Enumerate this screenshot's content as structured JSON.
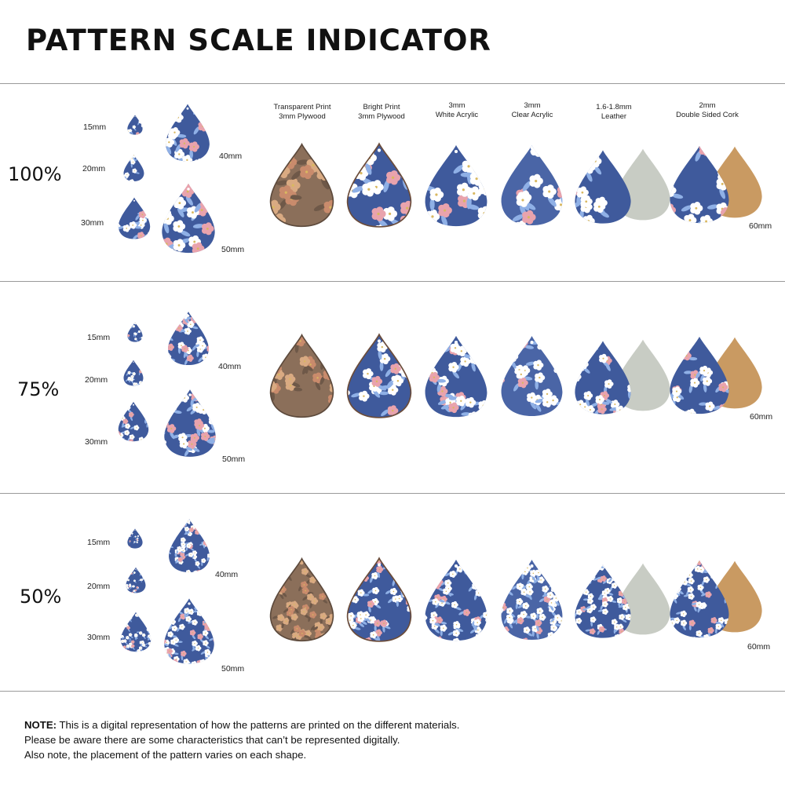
{
  "title": "PATTERN SCALE INDICATOR",
  "colors": {
    "navy": "#3f5a9c",
    "navy_dark": "#2f467f",
    "plywood": "#8b6f5a",
    "plywood_flower": "#d9aa82",
    "leather_back": "#c8ccc4",
    "cork": "#c99a62",
    "flower_white": "#ffffff",
    "flower_pink": "#e9a3ad",
    "leaf": "#8fb0e6"
  },
  "materials": [
    {
      "line1": "Transparent Print",
      "line2": "3mm Plywood"
    },
    {
      "line1": "Bright Print",
      "line2": "3mm Plywood"
    },
    {
      "line1": "3mm",
      "line2": "White Acrylic"
    },
    {
      "line1": "3mm",
      "line2": "Clear Acrylic"
    },
    {
      "line1": "1.6-1.8mm",
      "line2": "Leather"
    },
    {
      "line1": "2mm",
      "line2": "Double Sided Cork"
    }
  ],
  "sections": [
    {
      "scale": "100%",
      "sizes": [
        "15mm",
        "20mm",
        "30mm",
        "40mm",
        "50mm"
      ],
      "large_size": "60mm"
    },
    {
      "scale": "75%",
      "sizes": [
        "15mm",
        "20mm",
        "30mm",
        "40mm",
        "50mm"
      ],
      "large_size": "60mm"
    },
    {
      "scale": "50%",
      "sizes": [
        "15mm",
        "20mm",
        "30mm",
        "40mm",
        "50mm"
      ],
      "large_size": "60mm"
    }
  ],
  "note": {
    "bold": "NOTE:",
    "line1": " This is a digital representation of how the patterns are printed on the different materials.",
    "line2": "Please be aware there are some characteristics that can’t be represented digitally.",
    "line3": "Also note, the placement of the pattern varies on each shape."
  }
}
